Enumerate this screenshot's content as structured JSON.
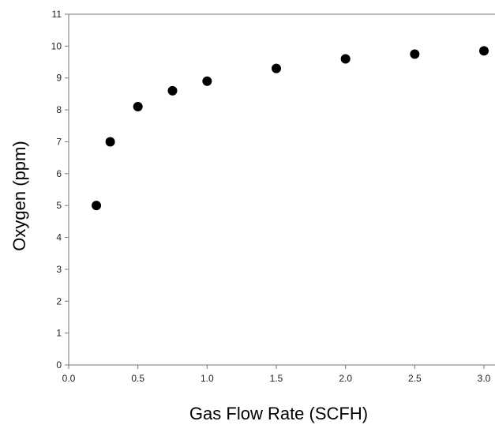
{
  "chart_data": {
    "type": "scatter",
    "title": "",
    "xlabel": "Gas Flow Rate (SCFH)",
    "ylabel": "Oxygen (ppm)",
    "xlim": [
      0,
      3.0
    ],
    "ylim": [
      0,
      11
    ],
    "x_ticks": [
      "0.0",
      "0.5",
      "1.0",
      "1.5",
      "2.0",
      "2.5",
      "3.0"
    ],
    "y_ticks": [
      "0",
      "1",
      "2",
      "3",
      "4",
      "5",
      "6",
      "7",
      "8",
      "9",
      "10",
      "11"
    ],
    "grid": false,
    "marker_color": "#000000",
    "axis_color": "#777777",
    "series": [
      {
        "x": [
          0.2,
          0.3,
          0.5,
          0.75,
          1.0,
          1.5,
          2.0,
          2.5,
          3.0
        ],
        "y": [
          5.0,
          7.0,
          8.1,
          8.6,
          8.9,
          9.3,
          9.6,
          9.75,
          9.85
        ]
      }
    ]
  }
}
